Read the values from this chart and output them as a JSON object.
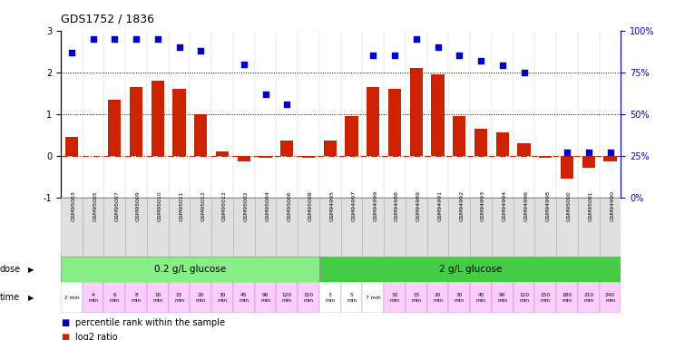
{
  "title": "GDS1752 / 1836",
  "gsm_labels": [
    "GSM95003",
    "GSM95005",
    "GSM95007",
    "GSM95009",
    "GSM95010",
    "GSM95011",
    "GSM95012",
    "GSM95013",
    "GSM95002",
    "GSM95004",
    "GSM95006",
    "GSM95008",
    "GSM94995",
    "GSM94997",
    "GSM94999",
    "GSM94988",
    "GSM94989",
    "GSM94991",
    "GSM94992",
    "GSM94993",
    "GSM94994",
    "GSM94996",
    "GSM94998",
    "GSM95000",
    "GSM95001",
    "GSM94990"
  ],
  "log2_ratio": [
    0.45,
    0.0,
    1.35,
    1.65,
    1.8,
    1.6,
    1.0,
    0.1,
    -0.15,
    -0.05,
    0.35,
    -0.05,
    0.35,
    0.95,
    1.65,
    1.6,
    2.1,
    1.95,
    0.95,
    0.65,
    0.55,
    0.3,
    -0.05,
    -0.55,
    -0.3,
    -0.15
  ],
  "percentile_rank": [
    87,
    95,
    95,
    95,
    95,
    90,
    88,
    null,
    80,
    62,
    56,
    null,
    null,
    null,
    85,
    85,
    95,
    90,
    85,
    82,
    79,
    75,
    null,
    27,
    27,
    27
  ],
  "ylim_left": [
    -1,
    3
  ],
  "ylim_right": [
    0,
    100
  ],
  "yticks_left": [
    -1,
    0,
    1,
    2,
    3
  ],
  "yticks_right": [
    0,
    25,
    50,
    75,
    100
  ],
  "yticklabels_right": [
    "0%",
    "25%",
    "50%",
    "75%",
    "100%"
  ],
  "bar_color": "#cc2200",
  "dot_color": "#0000cc",
  "dose_groups": [
    {
      "label": "0.2 g/L glucose",
      "start": 0,
      "end": 12,
      "color": "#88ee88"
    },
    {
      "label": "2 g/L glucose",
      "start": 12,
      "end": 26,
      "color": "#44cc44"
    }
  ],
  "time_labels": [
    "2 min",
    "4\nmin",
    "6\nmin",
    "8\nmin",
    "10\nmin",
    "15\nmin",
    "20\nmin",
    "30\nmin",
    "45\nmin",
    "90\nmin",
    "120\nmin",
    "150\nmin",
    "3\nmin",
    "5\nmin",
    "7 min",
    "10\nmin",
    "15\nmin",
    "20\nmin",
    "30\nmin",
    "45\nmin",
    "90\nmin",
    "120\nmin",
    "150\nmin",
    "180\nmin",
    "210\nmin",
    "240\nmin"
  ],
  "time_bg_colors": [
    "#ffffff",
    "#ffccff",
    "#ffccff",
    "#ffccff",
    "#ffccff",
    "#ffccff",
    "#ffccff",
    "#ffccff",
    "#ffccff",
    "#ffccff",
    "#ffccff",
    "#ffccff",
    "#ffffff",
    "#ffffff",
    "#ffffff",
    "#ffccff",
    "#ffccff",
    "#ffccff",
    "#ffccff",
    "#ffccff",
    "#ffccff",
    "#ffccff",
    "#ffccff",
    "#ffccff",
    "#ffccff",
    "#ffccff"
  ],
  "legend_items": [
    {
      "color": "#cc2200",
      "label": "log2 ratio"
    },
    {
      "color": "#0000cc",
      "label": "percentile rank within the sample"
    }
  ],
  "background_color": "#ffffff"
}
